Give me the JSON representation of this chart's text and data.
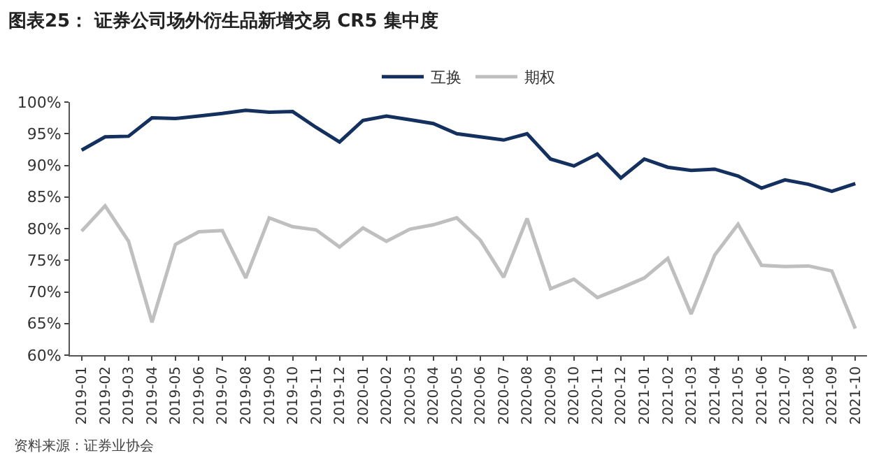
{
  "chart_data": {
    "type": "line",
    "title": "图表25：  证券公司场外衍生品新增交易 CR5 集中度",
    "categories": [
      "2019-01",
      "2019-02",
      "2019-03",
      "2019-04",
      "2019-05",
      "2019-06",
      "2019-07",
      "2019-08",
      "2019-09",
      "2019-10",
      "2019-11",
      "2019-12",
      "2020-01",
      "2020-02",
      "2020-03",
      "2020-04",
      "2020-05",
      "2020-06",
      "2020-07",
      "2020-08",
      "2020-09",
      "2020-10",
      "2020-11",
      "2020-12",
      "2021-01",
      "2021-02",
      "2021-03",
      "2021-04",
      "2021-05",
      "2021-06",
      "2021-07",
      "2021-08",
      "2021-09",
      "2021-10"
    ],
    "series": [
      {
        "name": "互换",
        "color": "#14305e",
        "values": [
          92.4,
          94.5,
          94.6,
          97.5,
          97.4,
          97.8,
          98.2,
          98.7,
          98.4,
          98.5,
          96.0,
          93.7,
          97.1,
          97.8,
          97.2,
          96.6,
          95.0,
          94.5,
          94.0,
          95.0,
          91.0,
          89.9,
          91.8,
          88.0,
          91.0,
          89.7,
          89.2,
          89.4,
          88.3,
          86.4,
          87.7,
          87.0,
          85.9,
          87.1
        ]
      },
      {
        "name": "期权",
        "color": "#bfbfbf",
        "values": [
          79.6,
          83.6,
          78.0,
          65.2,
          77.5,
          79.5,
          79.7,
          72.2,
          81.7,
          80.3,
          79.8,
          77.1,
          80.1,
          78.0,
          79.9,
          80.6,
          81.7,
          78.2,
          72.3,
          81.6,
          70.5,
          72.0,
          69.1,
          70.6,
          72.2,
          75.3,
          66.5,
          75.8,
          80.7,
          74.2,
          74.0,
          74.1,
          73.3,
          64.2
        ]
      }
    ],
    "ylim": [
      60,
      100
    ],
    "yticks": [
      {
        "value": 60,
        "label": "60%"
      },
      {
        "value": 65,
        "label": "65%"
      },
      {
        "value": 70,
        "label": "70%"
      },
      {
        "value": 75,
        "label": "75%"
      },
      {
        "value": 80,
        "label": "80%"
      },
      {
        "value": 85,
        "label": "85%"
      },
      {
        "value": 90,
        "label": "90%"
      },
      {
        "value": 95,
        "label": "95%"
      },
      {
        "value": 100,
        "label": "100%"
      }
    ],
    "grid": false,
    "legend": "top",
    "marker": "none",
    "line_style": "solid",
    "annotations": [
      "资料来源：证券业协会"
    ]
  }
}
